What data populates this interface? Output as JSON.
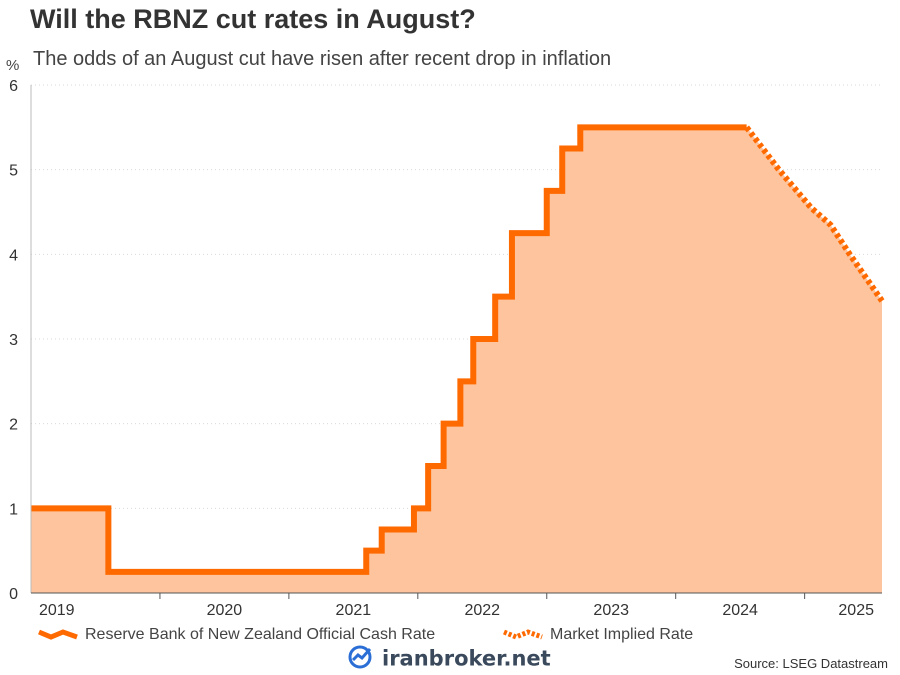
{
  "chart_data": {
    "type": "area",
    "title": "Will the RBNZ cut rates in August?",
    "subtitle": "The odds of an August cut have risen after recent drop in inflation",
    "ylabel": "%",
    "xlabel": "",
    "ylim": [
      0,
      6
    ],
    "yticks": [
      0,
      1,
      2,
      3,
      4,
      5,
      6
    ],
    "xlim": [
      2019.0,
      2025.6
    ],
    "xticks": [
      "2019",
      "2020",
      "2021",
      "2022",
      "2023",
      "2024",
      "2025"
    ],
    "grid": true,
    "legend_position": "bottom",
    "series": [
      {
        "name": "Reserve Bank of New Zealand Official Cash Rate",
        "style": "solid",
        "color": "#ff6a00",
        "fill": "#fdc49d",
        "points": [
          [
            2019.0,
            1.0
          ],
          [
            2019.6,
            1.0
          ],
          [
            2019.6,
            0.25
          ],
          [
            2021.6,
            0.25
          ],
          [
            2021.6,
            0.5
          ],
          [
            2021.72,
            0.5
          ],
          [
            2021.72,
            0.75
          ],
          [
            2021.97,
            0.75
          ],
          [
            2021.97,
            1.0
          ],
          [
            2022.08,
            1.0
          ],
          [
            2022.08,
            1.5
          ],
          [
            2022.2,
            1.5
          ],
          [
            2022.2,
            2.0
          ],
          [
            2022.33,
            2.0
          ],
          [
            2022.33,
            2.5
          ],
          [
            2022.43,
            2.5
          ],
          [
            2022.43,
            3.0
          ],
          [
            2022.6,
            3.0
          ],
          [
            2022.6,
            3.5
          ],
          [
            2022.73,
            3.5
          ],
          [
            2022.73,
            4.25
          ],
          [
            2023.0,
            4.25
          ],
          [
            2023.0,
            4.75
          ],
          [
            2023.12,
            4.75
          ],
          [
            2023.12,
            5.25
          ],
          [
            2023.26,
            5.25
          ],
          [
            2023.26,
            5.5
          ],
          [
            2024.55,
            5.5
          ]
        ]
      },
      {
        "name": "Market Implied Rate",
        "style": "dotted",
        "color": "#ff6a00",
        "points": [
          [
            2024.55,
            5.5
          ],
          [
            2024.8,
            5.0
          ],
          [
            2025.05,
            4.55
          ],
          [
            2025.2,
            4.35
          ],
          [
            2025.35,
            4.0
          ],
          [
            2025.6,
            3.45
          ]
        ]
      }
    ]
  },
  "source": "Source: LSEG Datastream",
  "watermark": "iranbroker.net"
}
